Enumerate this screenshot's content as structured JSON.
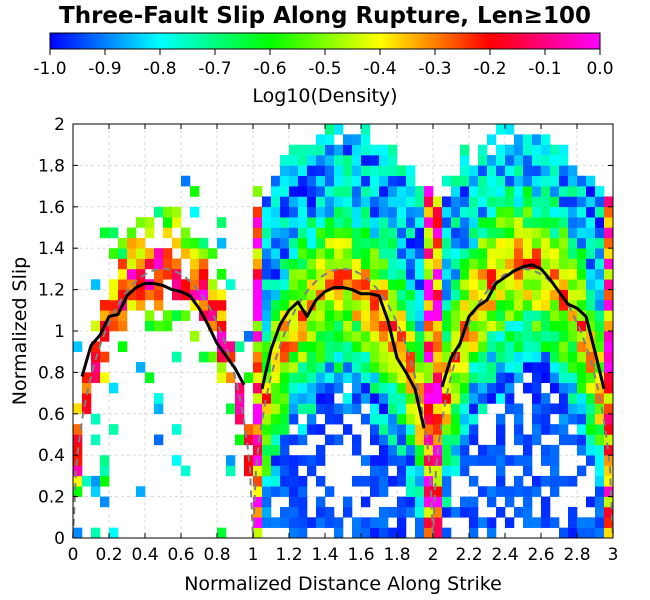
{
  "chart_data": {
    "type": "heatmap",
    "title": "Three-Fault Slip Along Rupture, Len≥100",
    "xlabel": "Normalized Distance Along Strike",
    "ylabel": "Normalized Slip",
    "xlim": [
      0,
      3
    ],
    "ylim": [
      0,
      2
    ],
    "x_ticks": [
      "0",
      "0.2",
      "0.4",
      "0.6",
      "0.8",
      "1",
      "1.2",
      "1.4",
      "1.6",
      "1.8",
      "2",
      "2.2",
      "2.4",
      "2.6",
      "2.8",
      "3"
    ],
    "y_ticks": [
      "0",
      "0.2",
      "0.4",
      "0.6",
      "0.8",
      "1",
      "1.2",
      "1.4",
      "1.6",
      "1.8",
      "2"
    ],
    "grid": true,
    "colorbar": {
      "label": "Log10(Density)",
      "range": [
        -1.0,
        0.0
      ],
      "ticks": [
        "-1.0",
        "-0.9",
        "-0.8",
        "-0.7",
        "-0.6",
        "-0.5",
        "-0.4",
        "-0.3",
        "-0.2",
        "-0.1",
        "0.0"
      ],
      "colors": [
        "#0000ff",
        "#00ffff",
        "#00ff00",
        "#ffff00",
        "#ff0000",
        "#ff00ff"
      ]
    },
    "cell_size": {
      "dx": 0.05,
      "dy": 0.05
    },
    "density_field_description_values": {
      "fault_segments": [
        [
          0,
          1
        ],
        [
          1,
          2
        ],
        [
          2,
          3
        ]
      ]
    },
    "mean_slip": [
      {
        "x": [
          0.05,
          0.1,
          0.15,
          0.2,
          0.25,
          0.3,
          0.35,
          0.4,
          0.45,
          0.5,
          0.55,
          0.6,
          0.65,
          0.7,
          0.75,
          0.8,
          0.85,
          0.9,
          0.95
        ],
        "y": [
          0.78,
          0.93,
          0.98,
          1.07,
          1.08,
          1.17,
          1.21,
          1.23,
          1.23,
          1.22,
          1.2,
          1.19,
          1.17,
          1.11,
          1.03,
          0.94,
          0.88,
          0.82,
          0.74
        ]
      },
      {
        "x": [
          1.05,
          1.1,
          1.15,
          1.2,
          1.25,
          1.3,
          1.35,
          1.4,
          1.45,
          1.5,
          1.55,
          1.6,
          1.65,
          1.7,
          1.75,
          1.8,
          1.85,
          1.9,
          1.95
        ],
        "y": [
          0.72,
          0.91,
          1.03,
          1.1,
          1.14,
          1.07,
          1.15,
          1.19,
          1.21,
          1.21,
          1.2,
          1.18,
          1.18,
          1.17,
          1.05,
          0.87,
          0.8,
          0.72,
          0.53
        ]
      },
      {
        "x": [
          2.05,
          2.1,
          2.15,
          2.2,
          2.25,
          2.3,
          2.35,
          2.4,
          2.45,
          2.5,
          2.55,
          2.6,
          2.65,
          2.7,
          2.75,
          2.8,
          2.85,
          2.9,
          2.95
        ],
        "y": [
          0.73,
          0.87,
          0.94,
          1.07,
          1.12,
          1.15,
          1.23,
          1.26,
          1.29,
          1.31,
          1.32,
          1.3,
          1.25,
          1.19,
          1.13,
          1.11,
          1.07,
          0.9,
          0.72
        ]
      }
    ],
    "reference_curve": [
      {
        "x0": 0,
        "x1": 1,
        "peak": 1.3
      },
      {
        "x0": 1,
        "x1": 2,
        "peak": 1.3
      },
      {
        "x0": 2,
        "x1": 3,
        "peak": 1.3
      }
    ]
  },
  "colors": {
    "mean_line": "#000000",
    "reference_line": "#808080",
    "grid": "#d8d8d8"
  }
}
